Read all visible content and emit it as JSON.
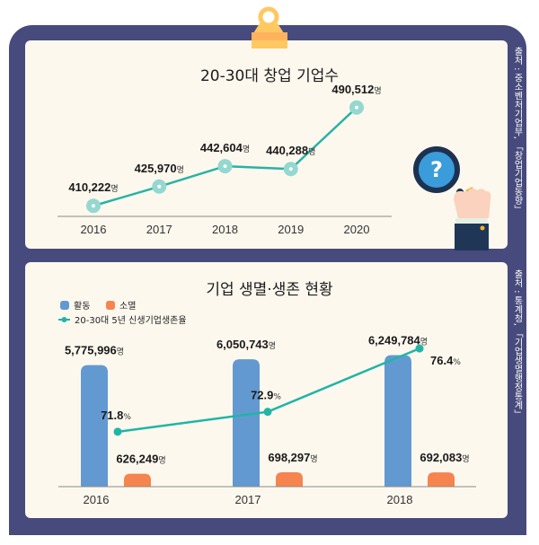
{
  "colors": {
    "board": "#474a7c",
    "panel": "#fdf8ee",
    "line_top": "#27b3a4",
    "marker_top": "#94d8d0",
    "bar_active": "#6399d1",
    "bar_closed": "#f6844f",
    "line_bottom": "#20b5a6",
    "clip": "#ffc861"
  },
  "icons": {
    "clip": "clipboard-clip-icon",
    "magnifier": "magnifying-glass-question-icon"
  },
  "chart_data": [
    {
      "type": "line",
      "title": "20-30대 창업 기업수",
      "source": "출처 : 중소벤처기업부, 「창업기업동향」",
      "categories": [
        "2016",
        "2017",
        "2018",
        "2019",
        "2020"
      ],
      "values": [
        410222,
        425970,
        442604,
        440288,
        490512
      ],
      "value_labels": [
        "410,222",
        "425,970",
        "442,604",
        "440,288",
        "490,512"
      ],
      "unit": "명",
      "ylim": [
        395000,
        505000
      ],
      "grid": false
    },
    {
      "type": "bar",
      "title": "기업 생멸·생존 현황",
      "source": "출처 : 통계청, 「기업생멸행정통계」",
      "categories": [
        "2016",
        "2017",
        "2018"
      ],
      "legend": [
        "활동",
        "소멸",
        "20-30대 5년 신생기업생존율"
      ],
      "legend_position": "top-left",
      "series": [
        {
          "name": "활동",
          "values": [
            5775996,
            6050743,
            6249784
          ],
          "labels": [
            "5,775,996",
            "6,050,743",
            "6,249,784"
          ],
          "unit": "명"
        },
        {
          "name": "소멸",
          "values": [
            626249,
            698297,
            692083
          ],
          "labels": [
            "626,249",
            "698,297",
            "692,083"
          ],
          "unit": "명"
        },
        {
          "name": "20-30대 5년 신생기업생존율",
          "type": "line",
          "values": [
            71.8,
            72.9,
            76.4
          ],
          "labels": [
            "71.8",
            "72.9",
            "76.4"
          ],
          "unit": "%"
        }
      ],
      "grid": false
    }
  ]
}
